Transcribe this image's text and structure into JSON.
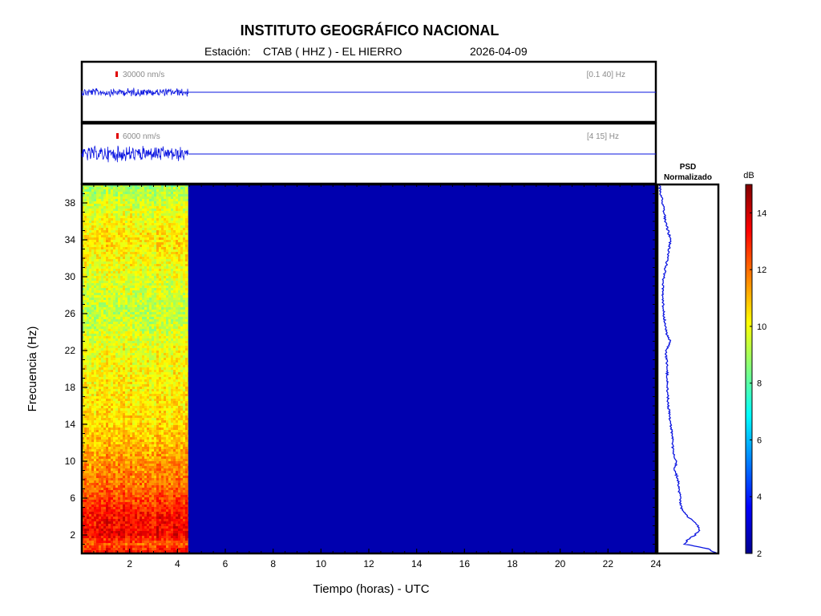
{
  "header": {
    "title": "INSTITUTO GEOGRÁFICO NACIONAL",
    "station_label": "Estación:",
    "station": "CTAB ( HHZ ) - EL HIERRO",
    "date": "2026-04-09"
  },
  "chart_data": [
    {
      "type": "line",
      "panel": "broadband-seismogram",
      "scale_label": "30000 nm/s",
      "band_label": "[0.1 40] Hz",
      "x_range": [
        0,
        24
      ],
      "data_end_hour": 4.45
    },
    {
      "type": "line",
      "panel": "filtered-seismogram",
      "scale_label": "6000 nm/s",
      "band_label": "[4 15] Hz",
      "x_range": [
        0,
        24
      ],
      "data_end_hour": 4.45
    },
    {
      "type": "heatmap",
      "panel": "spectrogram",
      "xlabel": "Tiempo (horas) - UTC",
      "ylabel": "Frecuencia  (Hz)",
      "xlim": [
        0,
        24
      ],
      "ylim": [
        0,
        40
      ],
      "x_ticks": [
        2,
        4,
        6,
        8,
        10,
        12,
        14,
        16,
        18,
        20,
        22,
        24
      ],
      "y_ticks": [
        2,
        6,
        10,
        14,
        18,
        22,
        26,
        30,
        34,
        38
      ],
      "data_end_hour": 4.45,
      "level_by_frequency": {
        "freq_hz": [
          0,
          1,
          2,
          3,
          4,
          6,
          8,
          10,
          12,
          14,
          18,
          22,
          26,
          30,
          34,
          38,
          40
        ],
        "db": [
          13.5,
          12.2,
          13.5,
          13.3,
          13.3,
          12.5,
          11.8,
          11.5,
          11.0,
          10.6,
          10.3,
          10.0,
          9.3,
          9.8,
          10.5,
          9.6,
          8.9
        ]
      }
    },
    {
      "type": "line",
      "panel": "psd",
      "title": "PSD\nNormalizado",
      "title_lines": [
        "PSD",
        "Normalizado"
      ],
      "freq_hz": [
        0,
        0.5,
        1,
        1.5,
        2,
        2.5,
        3,
        3.5,
        4,
        5,
        6,
        7,
        8,
        9,
        10,
        11,
        12,
        13,
        14,
        16,
        18,
        20,
        22,
        23,
        24,
        26,
        28,
        30,
        32,
        34,
        36,
        38,
        39,
        40
      ],
      "value": [
        1.0,
        0.85,
        0.45,
        0.5,
        0.62,
        0.7,
        0.68,
        0.58,
        0.5,
        0.38,
        0.37,
        0.34,
        0.33,
        0.27,
        0.3,
        0.24,
        0.24,
        0.22,
        0.2,
        0.16,
        0.14,
        0.14,
        0.12,
        0.2,
        0.12,
        0.08,
        0.06,
        0.08,
        0.15,
        0.2,
        0.11,
        0.06,
        0.03,
        0.0
      ]
    },
    {
      "type": "colorbar",
      "panel": "colorbar",
      "unit": "dB",
      "range": [
        2,
        15
      ],
      "ticks": [
        2,
        4,
        6,
        8,
        10,
        12,
        14
      ],
      "background_db": 2.6
    }
  ]
}
